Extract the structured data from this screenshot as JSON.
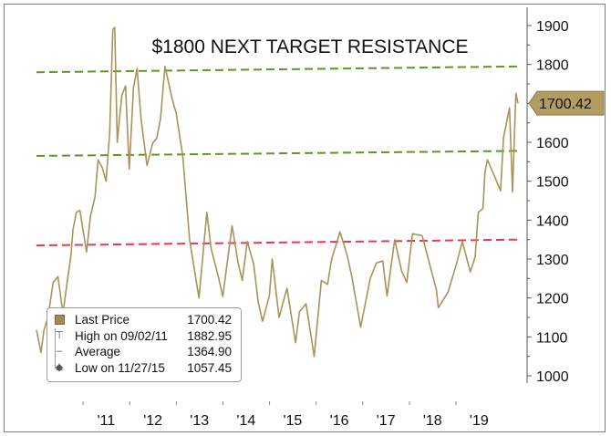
{
  "chart_data": {
    "type": "line",
    "title": "$1800 NEXT TARGET RESISTANCE",
    "x_tick_labels": [
      "'11",
      "'12",
      "'13",
      "'14",
      "'15",
      "'16",
      "'17",
      "'18",
      "'19"
    ],
    "y_tick_labels": [
      "1900",
      "1800",
      "1700",
      "1600",
      "1500",
      "1400",
      "1300",
      "1200",
      "1100",
      "1000"
    ],
    "ylim": [
      1000,
      1900
    ],
    "y_axis_side": "right",
    "grid": false,
    "series": [
      {
        "name": "Last Price",
        "color": "#a89358",
        "points": [
          [
            "2010-01-01",
            1118
          ],
          [
            "2010-02-05",
            1060
          ],
          [
            "2010-03-01",
            1118
          ],
          [
            "2010-04-01",
            1150
          ],
          [
            "2010-05-12",
            1240
          ],
          [
            "2010-06-18",
            1255
          ],
          [
            "2010-07-28",
            1160
          ],
          [
            "2010-08-31",
            1245
          ],
          [
            "2010-09-28",
            1309
          ],
          [
            "2010-10-14",
            1375
          ],
          [
            "2010-11-09",
            1420
          ],
          [
            "2010-12-07",
            1425
          ],
          [
            "2011-01-28",
            1318
          ],
          [
            "2011-02-28",
            1410
          ],
          [
            "2011-04-05",
            1460
          ],
          [
            "2011-04-29",
            1555
          ],
          [
            "2011-05-31",
            1535
          ],
          [
            "2011-06-30",
            1500
          ],
          [
            "2011-07-29",
            1625
          ],
          [
            "2011-08-22",
            1890
          ],
          [
            "2011-09-06",
            1895
          ],
          [
            "2011-09-26",
            1600
          ],
          [
            "2011-10-31",
            1720
          ],
          [
            "2011-11-30",
            1745
          ],
          [
            "2011-12-29",
            1531
          ],
          [
            "2012-01-31",
            1740
          ],
          [
            "2012-02-28",
            1790
          ],
          [
            "2012-03-30",
            1662
          ],
          [
            "2012-05-16",
            1540
          ],
          [
            "2012-06-29",
            1598
          ],
          [
            "2012-07-31",
            1610
          ],
          [
            "2012-08-30",
            1660
          ],
          [
            "2012-10-04",
            1795
          ],
          [
            "2012-11-30",
            1710
          ],
          [
            "2012-12-31",
            1675
          ],
          [
            "2013-02-20",
            1565
          ],
          [
            "2013-04-15",
            1350
          ],
          [
            "2013-06-27",
            1200
          ],
          [
            "2013-08-28",
            1420
          ],
          [
            "2013-09-30",
            1327
          ],
          [
            "2013-11-29",
            1250
          ],
          [
            "2013-12-31",
            1204
          ],
          [
            "2014-03-14",
            1385
          ],
          [
            "2014-04-30",
            1290
          ],
          [
            "2014-06-02",
            1245
          ],
          [
            "2014-07-10",
            1345
          ],
          [
            "2014-08-29",
            1288
          ],
          [
            "2014-10-03",
            1192
          ],
          [
            "2014-11-07",
            1140
          ],
          [
            "2014-12-31",
            1206
          ],
          [
            "2015-01-22",
            1300
          ],
          [
            "2015-03-17",
            1150
          ],
          [
            "2015-05-18",
            1225
          ],
          [
            "2015-07-24",
            1085
          ],
          [
            "2015-08-24",
            1165
          ],
          [
            "2015-10-14",
            1185
          ],
          [
            "2015-12-17",
            1050
          ],
          [
            "2016-02-11",
            1245
          ],
          [
            "2016-03-31",
            1235
          ],
          [
            "2016-05-02",
            1300
          ],
          [
            "2016-07-06",
            1370
          ],
          [
            "2016-08-31",
            1310
          ],
          [
            "2016-10-07",
            1255
          ],
          [
            "2016-12-15",
            1125
          ],
          [
            "2017-02-28",
            1250
          ],
          [
            "2017-04-17",
            1290
          ],
          [
            "2017-06-06",
            1295
          ],
          [
            "2017-07-10",
            1205
          ],
          [
            "2017-09-08",
            1350
          ],
          [
            "2017-10-31",
            1270
          ],
          [
            "2017-12-12",
            1240
          ],
          [
            "2018-01-25",
            1365
          ],
          [
            "2018-04-11",
            1360
          ],
          [
            "2018-05-31",
            1298
          ],
          [
            "2018-07-31",
            1222
          ],
          [
            "2018-08-16",
            1175
          ],
          [
            "2018-10-31",
            1215
          ],
          [
            "2018-12-31",
            1282
          ],
          [
            "2019-02-20",
            1345
          ],
          [
            "2019-04-23",
            1267
          ],
          [
            "2019-05-31",
            1305
          ],
          [
            "2019-06-25",
            1420
          ],
          [
            "2019-07-31",
            1430
          ],
          [
            "2019-08-16",
            1523
          ],
          [
            "2019-09-04",
            1555
          ],
          [
            "2019-10-31",
            1512
          ],
          [
            "2019-12-16",
            1475
          ],
          [
            "2020-01-08",
            1611
          ],
          [
            "2020-02-24",
            1689
          ],
          [
            "2020-03-19",
            1472
          ],
          [
            "2020-04-14",
            1726
          ],
          [
            "2020-05-01",
            1700
          ]
        ]
      }
    ],
    "reference_lines": [
      {
        "label": "",
        "color": "#5a9a1e",
        "from": [
          "2010-01-01",
          1780
        ],
        "to": [
          "2020-05-15",
          1795
        ]
      },
      {
        "label": "",
        "color": "#5a9a1e",
        "from": [
          "2010-01-01",
          1565
        ],
        "to": [
          "2020-05-15",
          1578
        ]
      },
      {
        "label": "",
        "color": "#e8384f",
        "from": [
          "2010-01-01",
          1335
        ],
        "to": [
          "2020-05-15",
          1350
        ]
      }
    ],
    "last_price_tag": "1700.42"
  },
  "legend": {
    "rows": [
      {
        "icon": "square-swatch-icon",
        "label": "Last Price",
        "value": "1700.42"
      },
      {
        "icon": "high-marker-icon",
        "label": "High on 09/02/11",
        "value": "1882.95"
      },
      {
        "icon": "average-marker-icon",
        "label": "Average",
        "value": "1364.90"
      },
      {
        "icon": "low-marker-icon",
        "label": "Low on 11/27/15",
        "value": "1057.45"
      }
    ]
  }
}
